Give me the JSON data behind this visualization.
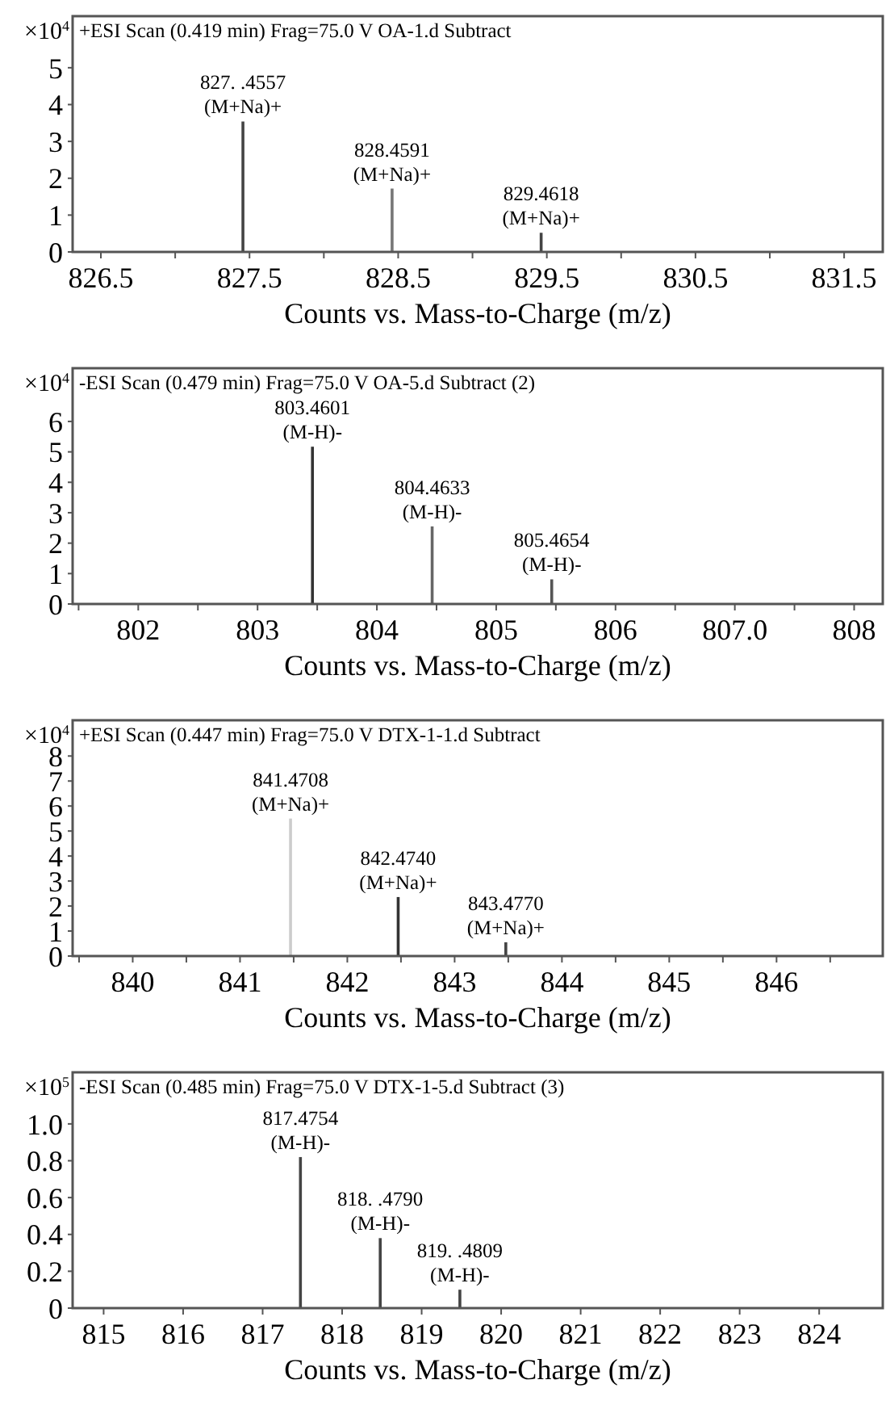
{
  "chart_data": [
    {
      "type": "bar",
      "title": "+ESI Scan (0.419 min) Frag=75.0 V OA-1.d Subtract",
      "xlabel": "Counts vs. Mass-to-Charge (m/z)",
      "ylabel": "×10$^{4}$",
      "x": [
        827.4557,
        828.4591,
        829.4618
      ],
      "values": [
        3.54,
        1.72,
        0.52
      ],
      "colors": [
        "#444444",
        "#777777",
        "#444444"
      ],
      "xlim": [
        826.31,
        831.76
      ],
      "xticks": [
        826.5,
        {
          "value": 827,
          "label": null
        },
        827.5,
        {
          "value": 828,
          "label": null
        },
        828.5,
        {
          "value": 829,
          "label": null
        },
        829.5,
        {
          "value": 830,
          "label": null
        },
        830.5,
        {
          "value": 831,
          "label": null
        },
        831.5
      ],
      "ylim": [
        0,
        6.4
      ],
      "yticks": [
        0,
        1,
        2,
        3,
        4,
        5
      ],
      "annotations": [
        {
          "text": "827. .4557\n(M+Na)+",
          "x": 827.4557,
          "y": 3.54
        },
        {
          "text": "828.4591\n(M+Na)+",
          "x": 828.4591,
          "y": 1.72
        },
        {
          "text": "829.4618\n(M+Na)+",
          "x": 829.4618,
          "y": 0.52
        }
      ]
    },
    {
      "type": "bar",
      "title": "-ESI Scan (0.479 min) Frag=75.0 V OA-5.d Subtract (2)",
      "xlabel": "Counts vs. Mass-to-Charge (m/z)",
      "ylabel": "×10$^{4}$",
      "x": [
        803.4601,
        804.4633,
        805.4654
      ],
      "values": [
        5.17,
        2.55,
        0.81
      ],
      "colors": [
        "#333333",
        "#666666",
        "#555555"
      ],
      "xlim": [
        801.45,
        808.24
      ],
      "xticks": [
        {
          "value": 801.5,
          "label": null
        },
        802,
        {
          "value": 802.5,
          "label": null
        },
        803,
        {
          "value": 803.5,
          "label": null
        },
        804,
        {
          "value": 804.5,
          "label": null
        },
        805,
        {
          "value": 805.5,
          "label": null
        },
        806,
        {
          "value": 806.5,
          "label": null
        },
        {
          "value": 807,
          "label": "807.0"
        },
        {
          "value": 807.5,
          "label": null
        },
        808
      ],
      "ylim": [
        0,
        7.75
      ],
      "yticks": [
        0,
        1,
        2,
        3,
        4,
        5,
        6
      ],
      "annotations": [
        {
          "text": "803.4601\n(M-H)-",
          "x": 803.4601,
          "y": 5.17
        },
        {
          "text": "804.4633\n(M-H)-",
          "x": 804.4633,
          "y": 2.55
        },
        {
          "text": "805.4654\n(M-H)-",
          "x": 805.4654,
          "y": 0.81
        }
      ]
    },
    {
      "type": "bar",
      "title": "+ESI Scan (0.447 min) Frag=75.0 V DTX-1-1.d Subtract",
      "xlabel": "Counts vs. Mass-to-Charge (m/z)",
      "ylabel": "×10$^{4}$",
      "x": [
        841.4708,
        842.474,
        843.477
      ],
      "values": [
        5.5,
        2.36,
        0.55
      ],
      "colors": [
        "#cccccc",
        "#333333",
        "#444444"
      ],
      "xlim": [
        839.44,
        846.99
      ],
      "xticks": [
        {
          "value": 839.5,
          "label": null
        },
        840,
        {
          "value": 840.5,
          "label": null
        },
        841,
        {
          "value": 841.5,
          "label": null
        },
        842,
        {
          "value": 842.5,
          "label": null
        },
        843,
        {
          "value": 843.5,
          "label": null
        },
        844,
        {
          "value": 844.5,
          "label": null
        },
        845,
        {
          "value": 845.5,
          "label": null
        },
        846,
        {
          "value": 846.5,
          "label": null
        }
      ],
      "ylim": [
        0,
        9.43
      ],
      "yticks": [
        0,
        1,
        2,
        3,
        4,
        5,
        6,
        7,
        8
      ],
      "annotations": [
        {
          "text": "841.4708\n(M+Na)+",
          "x": 841.4708,
          "y": 5.5
        },
        {
          "text": "842.4740\n(M+Na)+",
          "x": 842.474,
          "y": 2.36
        },
        {
          "text": "843.4770\n(M+Na)+",
          "x": 843.477,
          "y": 0.55
        }
      ]
    },
    {
      "type": "bar",
      "title": "-ESI Scan (0.485 min) Frag=75.0 V DTX-1-5.d Subtract (3)",
      "xlabel": "Counts vs. Mass-to-Charge (m/z)",
      "ylabel": "×10$^{5}$",
      "x": [
        817.4754,
        818.479,
        819.4809
      ],
      "values": [
        0.82,
        0.38,
        0.1
      ],
      "colors": [
        "#444444",
        "#444444",
        "#444444"
      ],
      "xlim": [
        814.61,
        824.8
      ],
      "xticks": [
        815,
        816,
        817,
        818,
        819,
        820,
        821,
        822,
        823,
        824
      ],
      "ylim": [
        0,
        1.28
      ],
      "yticks": [
        0,
        0.2,
        0.4,
        0.6,
        0.8,
        {
          "value": 1,
          "label": "1.0"
        }
      ],
      "annotations": [
        {
          "text": "817.4754\n(M-H)-",
          "x": 817.4754,
          "y": 0.82
        },
        {
          "text": "818. .4790\n(M-H)-",
          "x": 818.479,
          "y": 0.38
        },
        {
          "text": "819. .4809\n(M-H)-",
          "x": 819.4809,
          "y": 0.1
        }
      ]
    }
  ]
}
